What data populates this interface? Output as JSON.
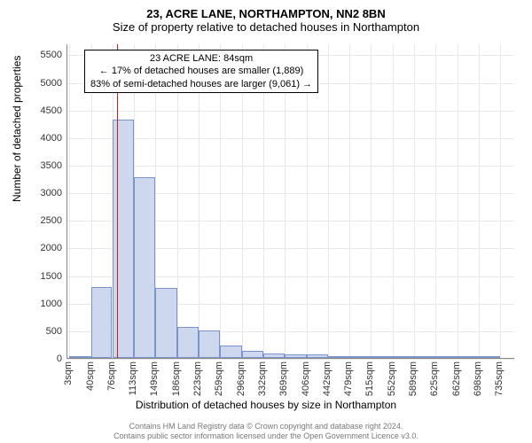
{
  "title_main": "23, ACRE LANE, NORTHAMPTON, NN2 8BN",
  "title_sub": "Size of property relative to detached houses in Northampton",
  "ylabel": "Number of detached properties",
  "xlabel": "Distribution of detached houses by size in Northampton",
  "footer_line1": "Contains HM Land Registry data © Crown copyright and database right 2024.",
  "footer_line2": "Contains public sector information licensed under the Open Government Licence v3.0.",
  "chart": {
    "type": "histogram-bar",
    "plot_background": "#ffffff",
    "grid_color": "#e8e8e8",
    "axis_color": "#888888",
    "bar_fill": "#cdd8ee",
    "bar_stroke": "#7a93c9",
    "bar_stroke_width": 1,
    "marker_color": "#d01c1c",
    "marker_x_value": 84,
    "x_min": 0,
    "x_max": 760,
    "y_min": 0,
    "y_max": 5700,
    "y_ticks": [
      0,
      500,
      1000,
      1500,
      2000,
      2500,
      3000,
      3500,
      4000,
      4500,
      5000,
      5500
    ],
    "x_ticks": [
      {
        "v": 3,
        "label": "3sqm"
      },
      {
        "v": 40,
        "label": "40sqm"
      },
      {
        "v": 76,
        "label": "76sqm"
      },
      {
        "v": 113,
        "label": "113sqm"
      },
      {
        "v": 149,
        "label": "149sqm"
      },
      {
        "v": 186,
        "label": "186sqm"
      },
      {
        "v": 223,
        "label": "223sqm"
      },
      {
        "v": 259,
        "label": "259sqm"
      },
      {
        "v": 296,
        "label": "296sqm"
      },
      {
        "v": 332,
        "label": "332sqm"
      },
      {
        "v": 369,
        "label": "369sqm"
      },
      {
        "v": 406,
        "label": "406sqm"
      },
      {
        "v": 442,
        "label": "442sqm"
      },
      {
        "v": 479,
        "label": "479sqm"
      },
      {
        "v": 515,
        "label": "515sqm"
      },
      {
        "v": 552,
        "label": "552sqm"
      },
      {
        "v": 589,
        "label": "589sqm"
      },
      {
        "v": 625,
        "label": "625sqm"
      },
      {
        "v": 662,
        "label": "662sqm"
      },
      {
        "v": 698,
        "label": "698sqm"
      },
      {
        "v": 735,
        "label": "735sqm"
      }
    ],
    "bars": [
      {
        "x0": 3,
        "x1": 40,
        "y": 20
      },
      {
        "x0": 40,
        "x1": 76,
        "y": 1280
      },
      {
        "x0": 76,
        "x1": 113,
        "y": 4320
      },
      {
        "x0": 113,
        "x1": 149,
        "y": 3280
      },
      {
        "x0": 149,
        "x1": 186,
        "y": 1270
      },
      {
        "x0": 186,
        "x1": 223,
        "y": 570
      },
      {
        "x0": 223,
        "x1": 259,
        "y": 490
      },
      {
        "x0": 259,
        "x1": 296,
        "y": 230
      },
      {
        "x0": 296,
        "x1": 332,
        "y": 130
      },
      {
        "x0": 332,
        "x1": 369,
        "y": 80
      },
      {
        "x0": 369,
        "x1": 406,
        "y": 60
      },
      {
        "x0": 406,
        "x1": 442,
        "y": 60
      },
      {
        "x0": 442,
        "x1": 479,
        "y": 15
      },
      {
        "x0": 479,
        "x1": 515,
        "y": 10
      },
      {
        "x0": 515,
        "x1": 552,
        "y": 5
      },
      {
        "x0": 552,
        "x1": 589,
        "y": 5
      },
      {
        "x0": 589,
        "x1": 625,
        "y": 3
      },
      {
        "x0": 625,
        "x1": 662,
        "y": 3
      },
      {
        "x0": 662,
        "x1": 698,
        "y": 2
      },
      {
        "x0": 698,
        "x1": 735,
        "y": 2
      }
    ]
  },
  "annotation": {
    "line1": "23 ACRE LANE: 84sqm",
    "line2": "← 17% of detached houses are smaller (1,889)",
    "line3": "83% of semi-detached houses are larger (9,061) →",
    "border_color": "#000000",
    "background": "#ffffff",
    "fontsize": 11
  }
}
